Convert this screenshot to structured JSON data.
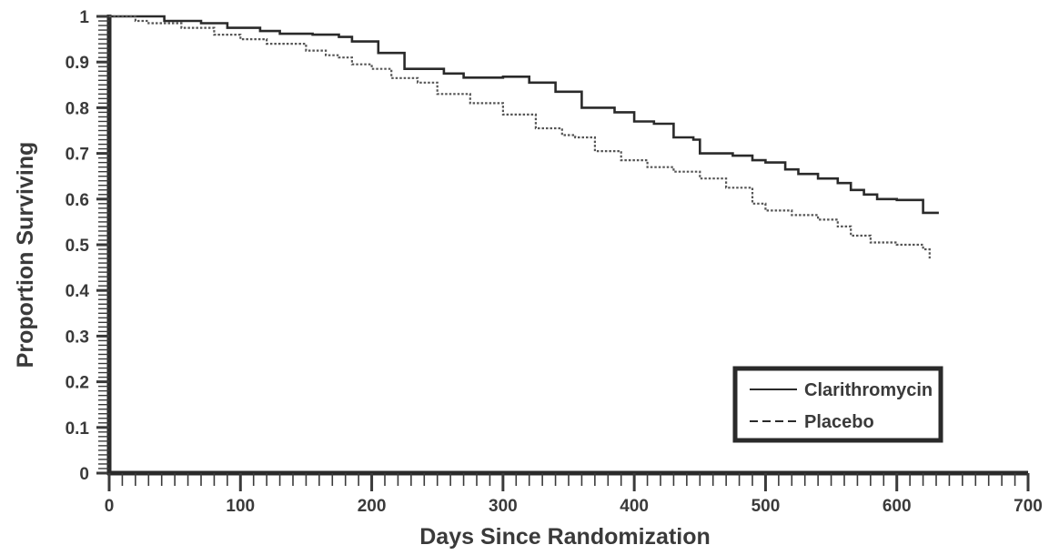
{
  "chart_data": {
    "type": "line",
    "title": "",
    "xlabel": "Days Since Randomization",
    "ylabel": "Proportion Surviving",
    "xlim": [
      0,
      700
    ],
    "ylim": [
      0,
      1
    ],
    "x_ticks": [
      0,
      100,
      200,
      300,
      400,
      500,
      600,
      700
    ],
    "x_tick_labels": [
      "0",
      "100",
      "200",
      "300",
      "400",
      "500",
      "600",
      "700"
    ],
    "y_ticks": [
      0,
      0.1,
      0.2,
      0.3,
      0.4,
      0.5,
      0.6,
      0.7,
      0.8,
      0.9,
      1
    ],
    "y_tick_labels": [
      "0",
      "0.1",
      "0.2",
      "0.3",
      "0.4",
      "0.5",
      "0.6",
      "0.7",
      "0.8",
      "0.9",
      "1"
    ],
    "x_minor_step": 10,
    "y_minor_step": 0.01,
    "grid": false,
    "legend_position": "bottom-right",
    "series": [
      {
        "name": "Clarithromycin",
        "line_style": "solid",
        "color": "#2a2a2a",
        "x": [
          0,
          40,
          42,
          70,
          90,
          115,
          130,
          155,
          175,
          185,
          205,
          225,
          232,
          255,
          270,
          300,
          315,
          320,
          340,
          360,
          375,
          385,
          400,
          415,
          430,
          445,
          450,
          475,
          490,
          500,
          515,
          525,
          540,
          555,
          565,
          575,
          585,
          600,
          610,
          620,
          632
        ],
        "y": [
          1.0,
          1.0,
          0.99,
          0.985,
          0.975,
          0.968,
          0.962,
          0.96,
          0.955,
          0.945,
          0.92,
          0.885,
          0.885,
          0.875,
          0.866,
          0.868,
          0.868,
          0.855,
          0.835,
          0.8,
          0.8,
          0.79,
          0.77,
          0.765,
          0.735,
          0.73,
          0.7,
          0.695,
          0.685,
          0.68,
          0.665,
          0.655,
          0.645,
          0.635,
          0.62,
          0.61,
          0.6,
          0.598,
          0.598,
          0.57,
          0.57
        ]
      },
      {
        "name": "Placebo",
        "line_style": "dotted",
        "color": "#555555",
        "x": [
          0,
          20,
          30,
          55,
          80,
          100,
          120,
          150,
          165,
          175,
          185,
          200,
          215,
          235,
          250,
          275,
          300,
          325,
          345,
          355,
          370,
          390,
          410,
          430,
          450,
          470,
          490,
          500,
          520,
          540,
          555,
          565,
          580,
          600,
          615,
          620,
          625
        ],
        "y": [
          1.0,
          0.99,
          0.985,
          0.975,
          0.96,
          0.95,
          0.94,
          0.925,
          0.915,
          0.91,
          0.895,
          0.885,
          0.865,
          0.855,
          0.83,
          0.81,
          0.785,
          0.755,
          0.74,
          0.735,
          0.705,
          0.685,
          0.67,
          0.66,
          0.645,
          0.625,
          0.59,
          0.575,
          0.565,
          0.555,
          0.54,
          0.52,
          0.505,
          0.5,
          0.5,
          0.49,
          0.47
        ]
      }
    ]
  }
}
